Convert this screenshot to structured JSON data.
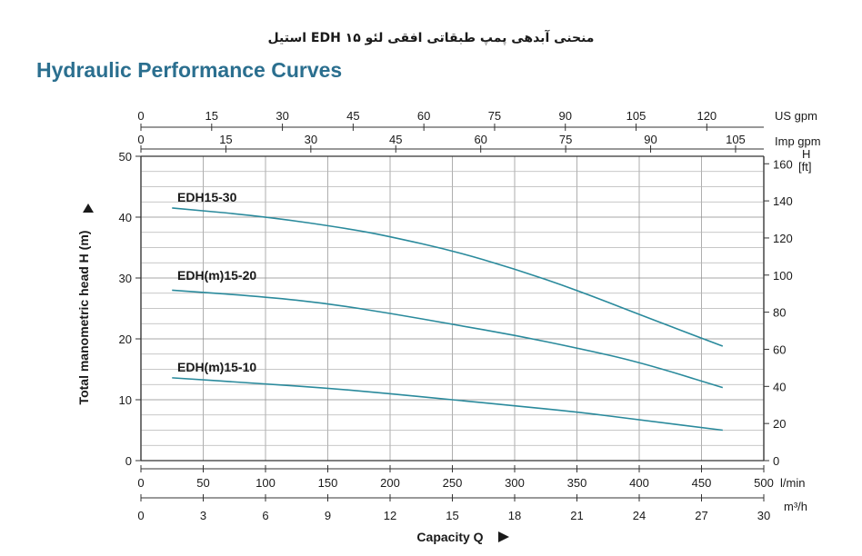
{
  "page_title": "منحنی آبدهی پمپ طبقاتی افقی لئو EDH ۱۵ استیل",
  "chart_data": {
    "type": "line",
    "title": "Hydraulic Performance Curves",
    "xlabel": "Capacity Q",
    "ylabel": "Total manometric head H (m)",
    "xlim": [
      0,
      500
    ],
    "ylim": [
      0,
      50
    ],
    "x_unit": "l/min",
    "x_ticks": [
      "0",
      "50",
      "100",
      "150",
      "200",
      "250",
      "300",
      "350",
      "400",
      "450",
      "500"
    ],
    "y_ticks": [
      "0",
      "10",
      "20",
      "30",
      "40",
      "50"
    ],
    "secondary_axes": {
      "us_gpm": {
        "unit": "US gpm",
        "ticks": [
          "0",
          "15",
          "30",
          "45",
          "60",
          "75",
          "90",
          "105",
          "120"
        ]
      },
      "imp_gpm": {
        "unit": "Imp gpm",
        "ticks": [
          "0",
          "15",
          "30",
          "45",
          "60",
          "75",
          "90",
          "105"
        ]
      },
      "m3h": {
        "unit": "m³/h",
        "ticks": [
          "0",
          "3",
          "6",
          "9",
          "12",
          "15",
          "18",
          "21",
          "24",
          "27",
          "30"
        ]
      },
      "h_ft": {
        "unit": "H",
        "unit2": "[ft]",
        "ticks": [
          "0",
          "20",
          "40",
          "60",
          "80",
          "100",
          "120",
          "140",
          "160"
        ]
      }
    },
    "grid": true,
    "line_color": "#2a8a9c",
    "series": [
      {
        "name": "EDH15-30",
        "x": [
          25,
          100,
          170,
          200,
          250,
          300,
          350,
          400,
          467
        ],
        "values": [
          41.5,
          40.1,
          38.0,
          36.8,
          34.5,
          31.5,
          28.0,
          24.0,
          18.8
        ]
      },
      {
        "name": "EDH(m)15-20",
        "x": [
          25,
          100,
          150,
          200,
          250,
          300,
          350,
          400,
          467
        ],
        "values": [
          28.0,
          26.9,
          25.8,
          24.2,
          22.4,
          20.6,
          18.5,
          16.2,
          12.0
        ]
      },
      {
        "name": "EDH(m)15-10",
        "x": [
          25,
          100,
          150,
          200,
          250,
          300,
          350,
          400,
          467
        ],
        "values": [
          13.6,
          12.6,
          11.9,
          11.0,
          10.0,
          9.0,
          8.0,
          6.7,
          5.0
        ]
      }
    ]
  }
}
